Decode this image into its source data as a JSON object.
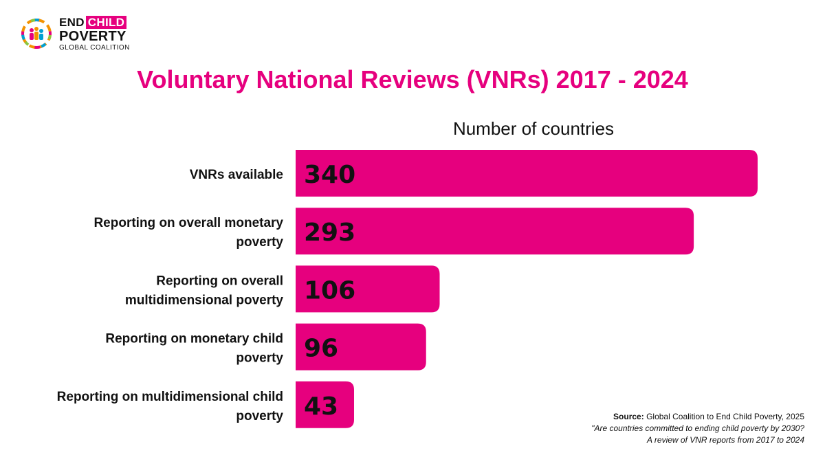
{
  "logo": {
    "line1": "END",
    "line1_highlight": "CHILD",
    "line2": "POVERTY",
    "line3": "GLOBAL COALITION"
  },
  "title": "Voluntary National Reviews (VNRs) 2017 - 2024",
  "subtitle": "Number of countries",
  "chart_data": {
    "type": "bar",
    "orientation": "horizontal",
    "categories": [
      [
        "VNRs available"
      ],
      [
        "Reporting on overall monetary",
        "poverty"
      ],
      [
        "Reporting on overall",
        "multidimensional poverty"
      ],
      [
        "Reporting on monetary child",
        "poverty"
      ],
      [
        "Reporting on multidimensional child",
        "poverty"
      ]
    ],
    "values": [
      340,
      293,
      106,
      96,
      43
    ],
    "xlim": [
      0,
      340
    ],
    "bar_color": "#e6007e",
    "data_labels": true,
    "grid": false
  },
  "source": {
    "label": "Source:",
    "text": "Global Coalition to End Child Poverty, 2025",
    "line2": "\"Are countries committed to ending child poverty by 2030?",
    "line3": "A review of VNR reports from 2017 to 2024"
  },
  "colors": {
    "accent": "#e6007e",
    "text": "#111111"
  }
}
